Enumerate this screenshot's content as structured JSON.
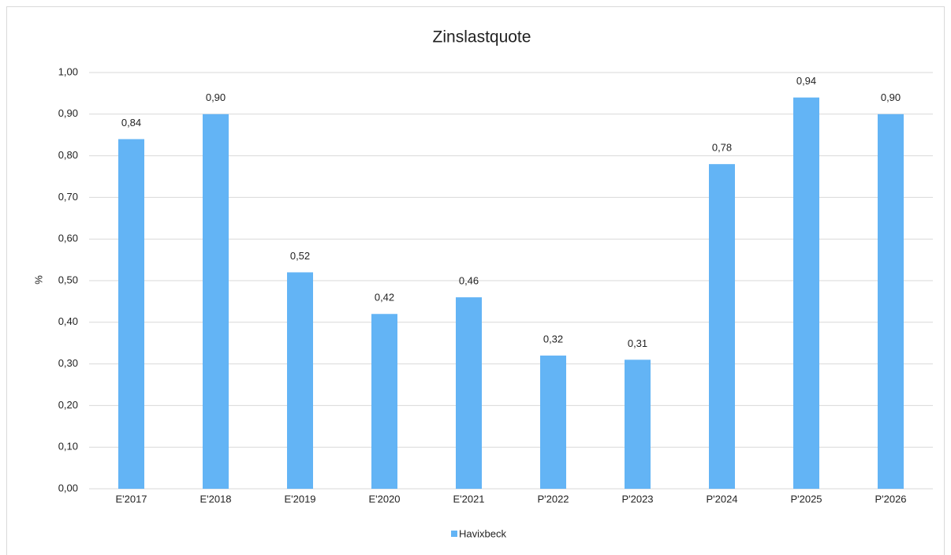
{
  "chart_data": {
    "type": "bar",
    "title": "Zinslastquote",
    "y_label": "%",
    "categories": [
      "E'2017",
      "E'2018",
      "E'2019",
      "E'2020",
      "E'2021",
      "P'2022",
      "P'2023",
      "P'2024",
      "P'2025",
      "P'2026"
    ],
    "series": [
      {
        "name": "Havixbeck",
        "color": "#63b4f5",
        "values": [
          0.84,
          0.9,
          0.52,
          0.42,
          0.46,
          0.32,
          0.31,
          0.78,
          0.94,
          0.9
        ],
        "value_labels": [
          "0,84",
          "0,90",
          "0,52",
          "0,42",
          "0,46",
          "0,32",
          "0,31",
          "0,78",
          "0,94",
          "0,90"
        ]
      }
    ],
    "ylim": [
      0,
      1
    ],
    "yticks": [
      {
        "value": 0,
        "label": "0,00"
      },
      {
        "value": 0.1,
        "label": "0,10"
      },
      {
        "value": 0.2,
        "label": "0,20"
      },
      {
        "value": 0.3,
        "label": "0,30"
      },
      {
        "value": 0.4,
        "label": "0,40"
      },
      {
        "value": 0.5,
        "label": "0,50"
      },
      {
        "value": 0.6,
        "label": "0,60"
      },
      {
        "value": 0.7,
        "label": "0,70"
      },
      {
        "value": 0.8,
        "label": "0,80"
      },
      {
        "value": 0.9,
        "label": "0,90"
      },
      {
        "value": 1,
        "label": "1,00"
      }
    ],
    "grid": true,
    "legend": "bottom"
  }
}
